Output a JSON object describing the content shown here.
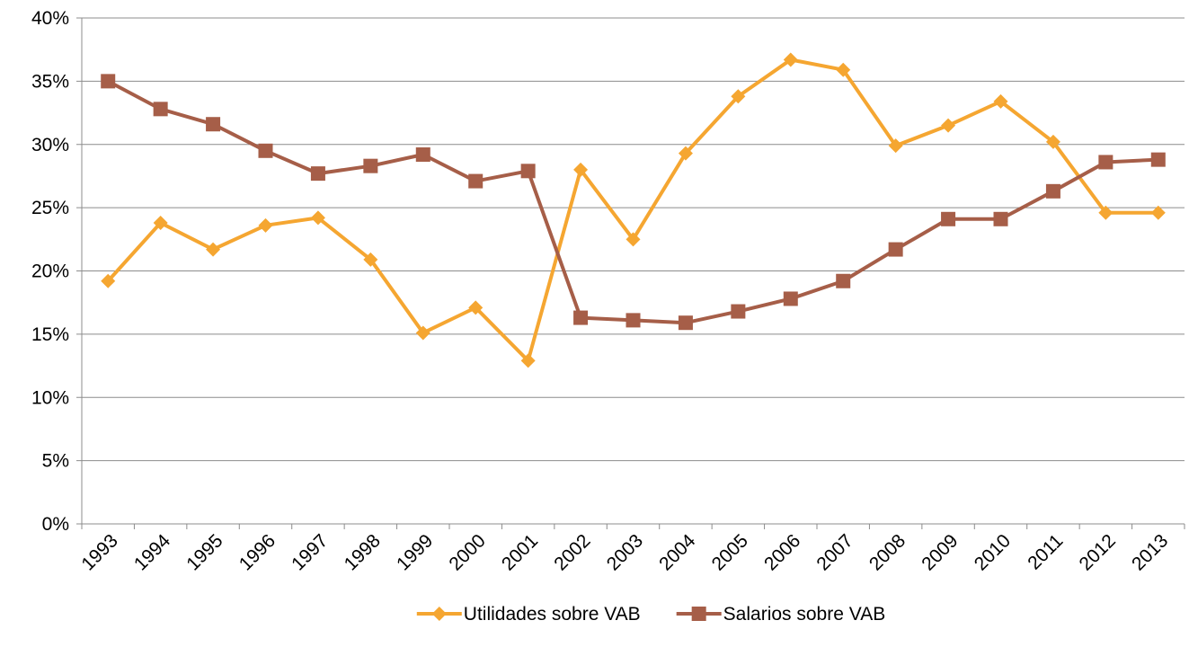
{
  "chart_data": {
    "type": "line",
    "categories": [
      "1993",
      "1994",
      "1995",
      "1996",
      "1997",
      "1998",
      "1999",
      "2000",
      "2001",
      "2002",
      "2003",
      "2004",
      "2005",
      "2006",
      "2007",
      "2008",
      "2009",
      "2010",
      "2011",
      "2012",
      "2013"
    ],
    "series": [
      {
        "name": "Utilidades sobre VAB",
        "color": "#f5a631",
        "marker": "diamond",
        "values": [
          19.2,
          23.8,
          21.7,
          23.6,
          24.2,
          20.9,
          15.1,
          17.1,
          12.9,
          28.0,
          22.5,
          29.3,
          33.8,
          36.7,
          35.9,
          29.9,
          31.5,
          33.4,
          30.2,
          24.6,
          24.6
        ]
      },
      {
        "name": "Salarios sobre VAB",
        "color": "#a65e48",
        "marker": "square",
        "values": [
          35.0,
          32.8,
          31.6,
          29.5,
          27.7,
          28.3,
          29.2,
          27.1,
          27.9,
          16.3,
          16.1,
          15.9,
          16.8,
          17.8,
          19.2,
          21.7,
          24.1,
          24.1,
          26.3,
          28.6,
          28.8
        ]
      }
    ],
    "ylim": [
      0,
      40
    ],
    "yticks": [
      {
        "value": 0,
        "label": "0%"
      },
      {
        "value": 5,
        "label": "5%"
      },
      {
        "value": 10,
        "label": "10%"
      },
      {
        "value": 15,
        "label": "15%"
      },
      {
        "value": 20,
        "label": "20%"
      },
      {
        "value": 25,
        "label": "25%"
      },
      {
        "value": 30,
        "label": "30%"
      },
      {
        "value": 35,
        "label": "35%"
      },
      {
        "value": 40,
        "label": "40%"
      }
    ],
    "grid": true,
    "legend": "bottom"
  }
}
